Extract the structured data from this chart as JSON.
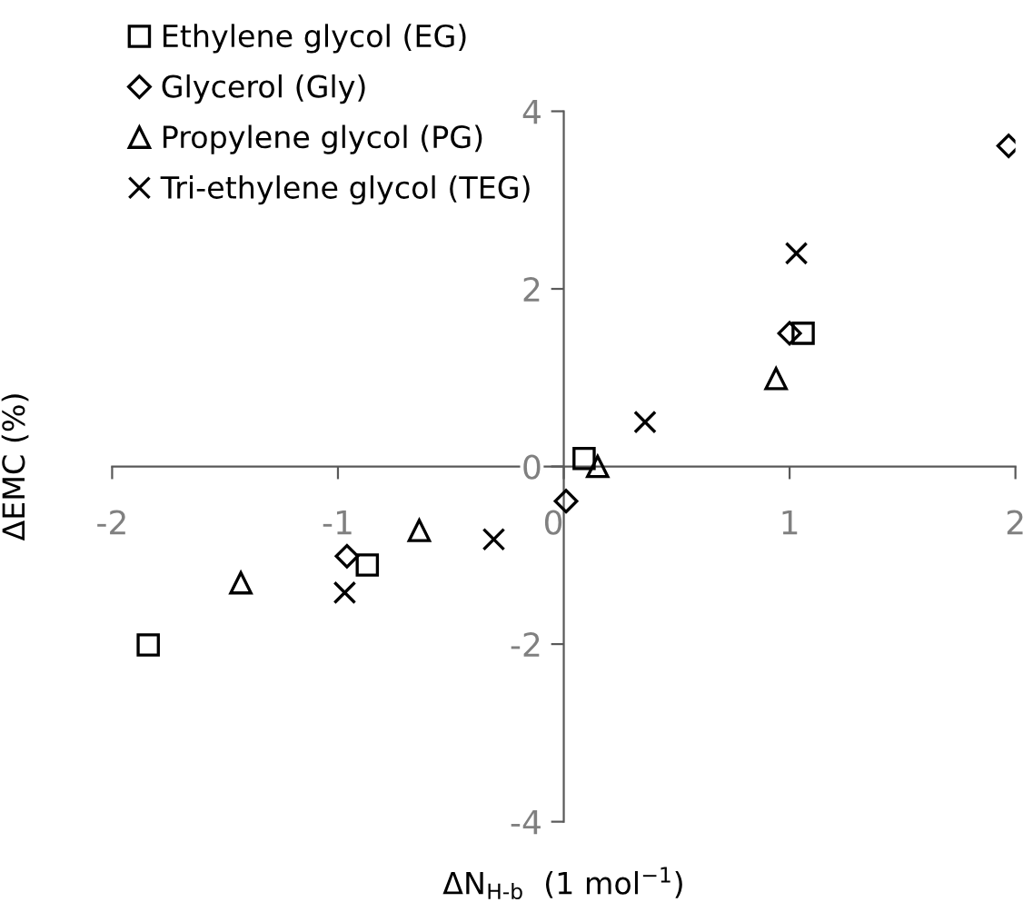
{
  "chart_data": {
    "type": "scatter",
    "xlabel": "ΔN$_{H-b}$  (1 mol$^{−1}$)",
    "ylabel": "ΔEMC (%)",
    "xlim": [
      -2,
      2
    ],
    "ylim": [
      -4,
      4
    ],
    "xticks": [
      -2,
      -1,
      0,
      1,
      2
    ],
    "yticks": [
      -4,
      -2,
      0,
      2,
      4
    ],
    "grid": false,
    "legend": "top left",
    "series": [
      {
        "name": "Ethylene glycol (EG)",
        "color": "#000000",
        "marker": "square",
        "x": [
          1.06,
          0.09,
          -0.87,
          -1.84
        ],
        "values": [
          1.5,
          0.09,
          -1.11,
          -2.01
        ]
      },
      {
        "name": "Glycerol (Gly)",
        "color": "#000000",
        "marker": "diamond",
        "x": [
          1.97,
          1.0,
          0.01,
          -0.96
        ],
        "values": [
          3.61,
          1.5,
          -0.39,
          -1.01
        ]
      },
      {
        "name": "Propylene glycol (PG)",
        "color": "#000000",
        "marker": "triangle",
        "x": [
          0.94,
          0.15,
          -0.64,
          -1.43
        ],
        "values": [
          0.99,
          0.0,
          -0.72,
          -1.31
        ]
      },
      {
        "name": "Tri-ethylene glycol (TEG)",
        "color": "#000000",
        "marker": "cross",
        "x": [
          1.03,
          0.36,
          -0.31,
          -0.97
        ],
        "values": [
          2.4,
          0.5,
          -0.82,
          -1.42
        ]
      }
    ]
  }
}
